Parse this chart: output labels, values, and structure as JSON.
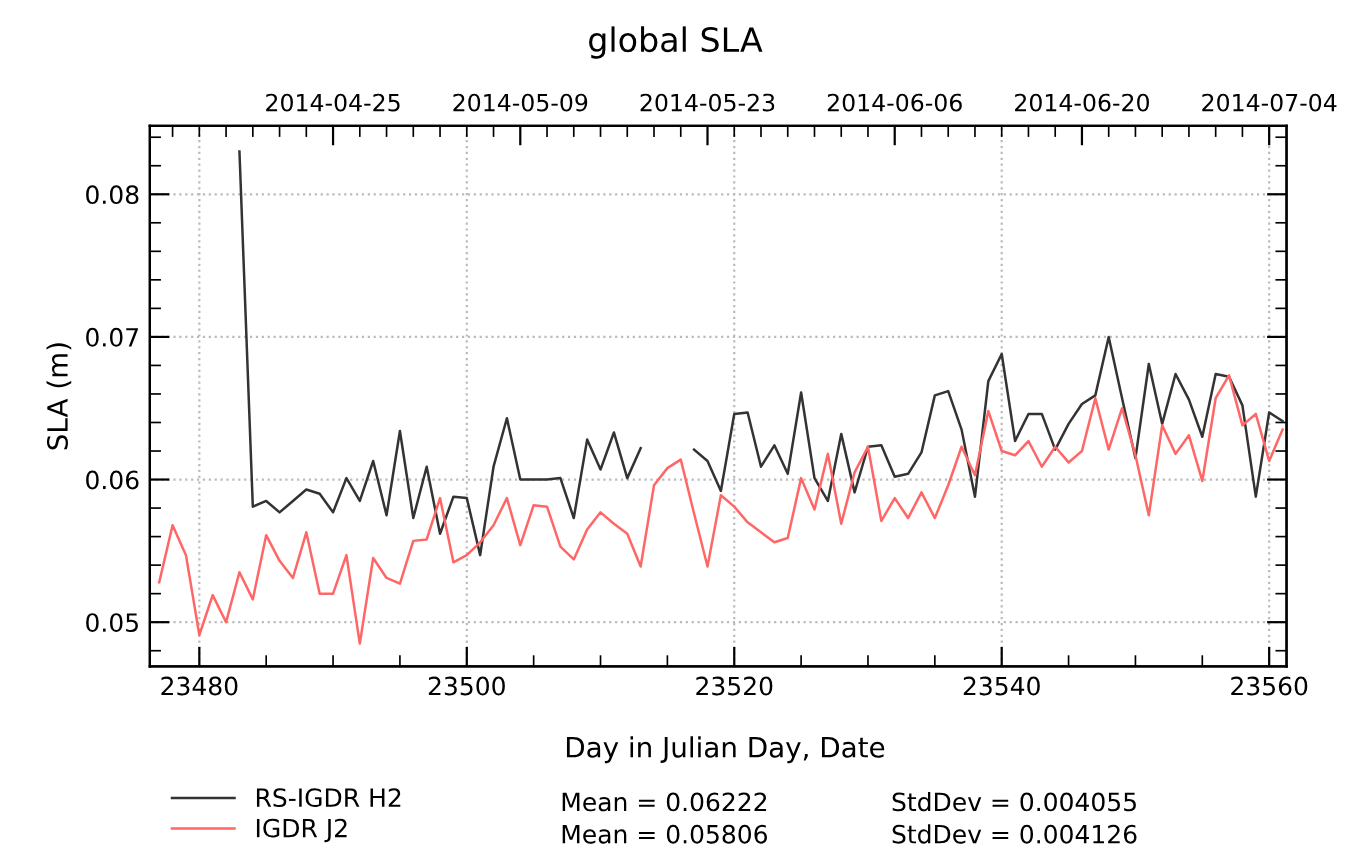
{
  "chart_data": {
    "type": "line",
    "title": "global SLA",
    "xlabel": "Day in Julian Day, Date",
    "ylabel": "SLA (m)",
    "x": [
      23477,
      23478,
      23479,
      23480,
      23481,
      23482,
      23483,
      23484,
      23485,
      23486,
      23487,
      23488,
      23489,
      23490,
      23491,
      23492,
      23493,
      23494,
      23495,
      23496,
      23497,
      23498,
      23499,
      23500,
      23501,
      23502,
      23503,
      23504,
      23505,
      23506,
      23507,
      23508,
      23509,
      23510,
      23511,
      23512,
      23513,
      23514,
      23515,
      23516,
      23517,
      23518,
      23519,
      23520,
      23521,
      23522,
      23523,
      23524,
      23525,
      23526,
      23527,
      23528,
      23529,
      23530,
      23531,
      23532,
      23533,
      23534,
      23535,
      23536,
      23537,
      23538,
      23539,
      23540,
      23541,
      23542,
      23543,
      23544,
      23545,
      23546,
      23547,
      23548,
      23549,
      23550,
      23551,
      23552,
      23553,
      23554,
      23555,
      23556,
      23557,
      23558,
      23559,
      23560,
      23561
    ],
    "series": [
      {
        "name": "RS-IGDR H2",
        "color": "#333333",
        "values": [
          null,
          null,
          null,
          null,
          null,
          null,
          0.083,
          0.0581,
          0.0585,
          0.0577,
          0.0585,
          0.0593,
          0.059,
          0.0577,
          0.0601,
          0.0585,
          0.0613,
          0.0575,
          0.0634,
          0.0573,
          0.0609,
          0.0562,
          0.0588,
          0.0587,
          0.0547,
          0.0609,
          0.0643,
          0.06,
          0.06,
          0.06,
          0.0601,
          0.0573,
          0.0628,
          0.0607,
          0.0633,
          0.0601,
          0.0622,
          null,
          null,
          null,
          0.0621,
          0.0613,
          0.0592,
          0.0646,
          0.0647,
          0.0609,
          0.0624,
          0.0604,
          0.0661,
          0.0601,
          0.0585,
          0.0632,
          0.0591,
          0.0623,
          0.0624,
          0.0602,
          0.0604,
          0.0619,
          0.0659,
          0.0662,
          0.0635,
          0.0588,
          0.0669,
          0.0688,
          0.0627,
          0.0646,
          0.0646,
          0.0621,
          0.0639,
          0.0653,
          0.0659,
          0.07,
          0.0657,
          0.0615,
          0.0681,
          0.0639,
          0.0674,
          0.0656,
          0.063,
          0.0674,
          0.0672,
          0.0652,
          0.0588,
          0.0647,
          0.0641
        ]
      },
      {
        "name": "IGDR J2",
        "color": "#ff6666",
        "values": [
          0.0528,
          0.0568,
          0.0547,
          0.0491,
          0.0519,
          0.05,
          0.0535,
          0.0516,
          0.0561,
          0.0543,
          0.0531,
          0.0563,
          0.052,
          0.052,
          0.0547,
          0.0485,
          0.0545,
          0.0531,
          0.0527,
          0.0557,
          0.0558,
          0.0587,
          0.0542,
          0.0547,
          0.0556,
          0.0568,
          0.0587,
          0.0554,
          0.0582,
          0.0581,
          0.0553,
          0.0544,
          0.0565,
          0.0577,
          0.0569,
          0.0562,
          0.0539,
          0.0596,
          0.0608,
          0.0614,
          0.0576,
          0.0539,
          0.0589,
          0.0581,
          0.057,
          0.0563,
          0.0556,
          0.0559,
          0.0601,
          0.0579,
          0.0618,
          0.0569,
          0.0605,
          0.0623,
          0.0571,
          0.0587,
          0.0573,
          0.0591,
          0.0573,
          0.0596,
          0.0623,
          0.0603,
          0.0648,
          0.062,
          0.0617,
          0.0627,
          0.0609,
          0.0623,
          0.0612,
          0.062,
          0.0657,
          0.0621,
          0.065,
          0.0617,
          0.0575,
          0.0638,
          0.0618,
          0.0631,
          0.0599,
          0.0657,
          0.0673,
          0.0638,
          0.0646,
          0.0613,
          0.0635
        ]
      }
    ],
    "xlim": [
      23476.3,
      23561.3
    ],
    "xticks": [
      23480,
      23500,
      23520,
      23540,
      23560
    ],
    "ylim": [
      0.0469,
      0.0848
    ],
    "yticks": [
      0.05,
      0.06,
      0.07,
      0.08
    ],
    "x2lim": [
      "2014-04-11T07:12",
      "2014-07-05T07:12"
    ],
    "x2ticks": [
      "2014-04-25",
      "2014-05-09",
      "2014-05-23",
      "2014-06-06",
      "2014-06-20",
      "2014-07-04"
    ],
    "grid": true,
    "legend": "bottom",
    "marker": "none",
    "line_style": "solid",
    "annotations": [
      "Mean = 0.06222",
      "StdDev = 0.004055",
      "Mean = 0.05806",
      "StdDev = 0.004126"
    ]
  }
}
